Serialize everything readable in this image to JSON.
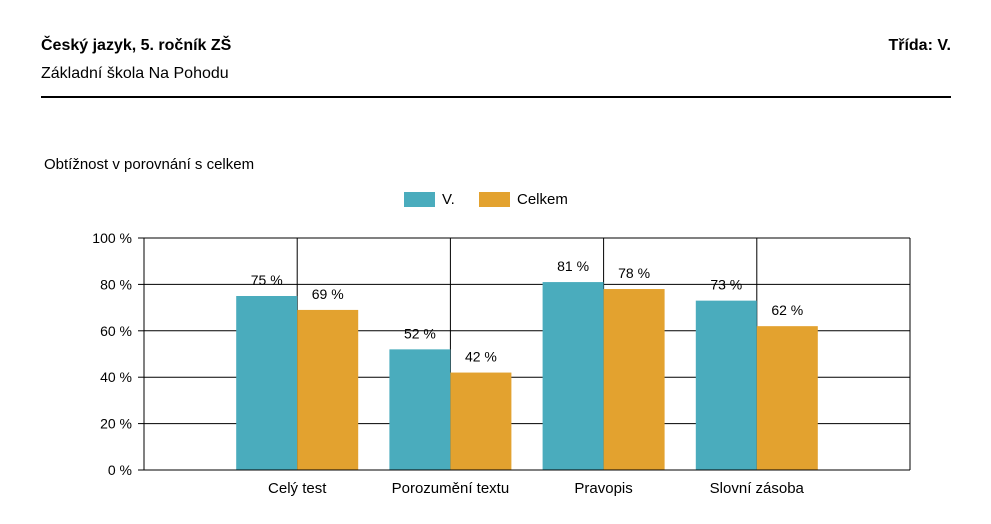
{
  "header": {
    "title": "Český jazyk, 5. ročník ZŠ",
    "school": "Základní škola Na Pohodu",
    "class_label": "Třída: V."
  },
  "chart_data": {
    "type": "bar",
    "title": "Obtížnost v porovnání s celkem",
    "categories": [
      "Celý test",
      "Porozumění textu",
      "Pravopis",
      "Slovní zásoba"
    ],
    "series": [
      {
        "name": "V.",
        "values": [
          75,
          52,
          81,
          73
        ],
        "color": "#4aacbd"
      },
      {
        "name": "Celkem",
        "values": [
          69,
          42,
          78,
          62
        ],
        "color": "#e3a22f"
      }
    ],
    "ylim": [
      0,
      100
    ],
    "yticks": [
      0,
      20,
      40,
      60,
      80,
      100
    ],
    "ytick_suffix": " %",
    "value_suffix": " %",
    "legend_position": "top-center",
    "grid": true
  }
}
